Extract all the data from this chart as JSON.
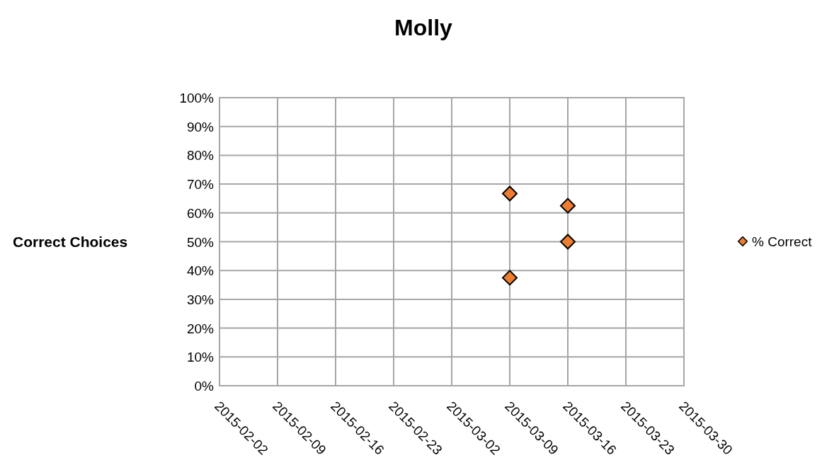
{
  "chart_data": {
    "type": "scatter",
    "title": "Molly",
    "ylabel": "Correct Choices",
    "series": [
      {
        "name": "% Correct",
        "color": "#ed7d31",
        "x": [
          "2015-03-09",
          "2015-03-09",
          "2015-03-16",
          "2015-03-16"
        ],
        "values": [
          66.7,
          37.5,
          62.5,
          50
        ]
      }
    ],
    "xlim": [
      "2015-02-02",
      "2015-03-30"
    ],
    "xticks": [
      "2015-02-02",
      "2015-02-09",
      "2015-02-16",
      "2015-02-23",
      "2015-03-02",
      "2015-03-09",
      "2015-03-16",
      "2015-03-23",
      "2015-03-30"
    ],
    "ylim": [
      0,
      100
    ],
    "yticks": [
      {
        "value": 0,
        "label": "0%"
      },
      {
        "value": 10,
        "label": "10%"
      },
      {
        "value": 20,
        "label": "20%"
      },
      {
        "value": 30,
        "label": "30%"
      },
      {
        "value": 40,
        "label": "40%"
      },
      {
        "value": 50,
        "label": "50%"
      },
      {
        "value": 60,
        "label": "60%"
      },
      {
        "value": 70,
        "label": "70%"
      },
      {
        "value": 80,
        "label": "80%"
      },
      {
        "value": 90,
        "label": "90%"
      },
      {
        "value": 100,
        "label": "100%"
      }
    ],
    "grid": true,
    "legend": "right",
    "marker": "diamond"
  }
}
